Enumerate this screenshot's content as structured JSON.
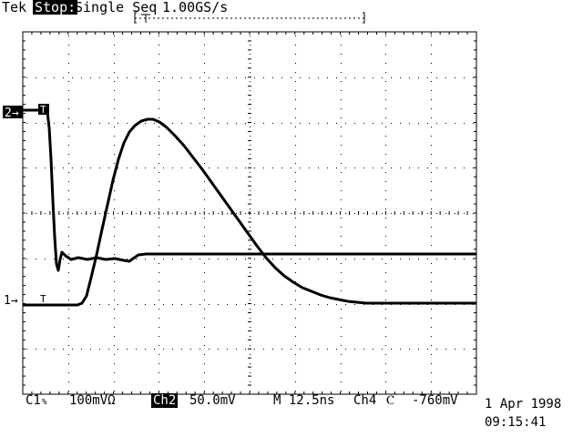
{
  "header": {
    "brand": "Tek",
    "state": "Stop:",
    "mode": "Single Seq",
    "sample_rate": "1.00GS/s"
  },
  "markers": {
    "ch2_label": "2→",
    "ch1_label": "1→",
    "trigger_level": "T",
    "trigger_position": "T"
  },
  "status": {
    "ch1": "C1",
    "ch1_coupling": "%",
    "ch1_scale": "100mVΩ",
    "ch2_label": "Ch2",
    "ch2_scale": "50.0mV",
    "timebase": "M 12.5ns",
    "trigger_source": "Ch4",
    "trigger_slope": "Ⲥ",
    "trigger_level": "-760mV"
  },
  "timestamp": {
    "date": "1 Apr 1998",
    "time": "09:15:41"
  },
  "colors": {
    "background": "#ffffff",
    "trace": "#000000",
    "grid": "#000000"
  },
  "icons": {
    "trigger_slope": "falling-edge-icon"
  }
}
